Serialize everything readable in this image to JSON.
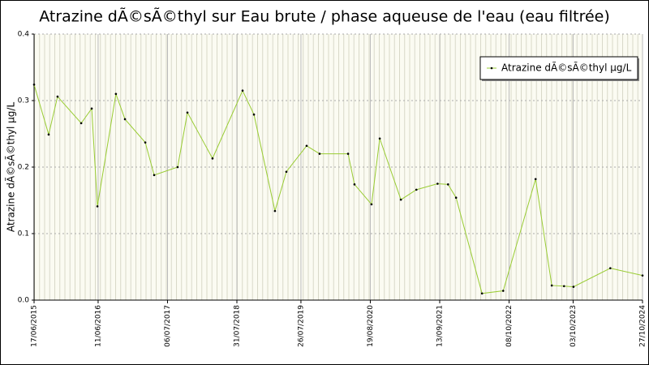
{
  "chart_data": {
    "type": "line",
    "title": "Atrazine dÃ©sÃ©thyl sur Eau brute / phase aqueuse de l'eau (eau filtrée)",
    "y_label": "Atrazine dÃ©sÃ©thyl µg/L",
    "x": [
      "17/06/2015",
      "07/09/2015",
      "27/10/2015",
      "08/03/2016",
      "06/05/2016",
      "07/06/2016",
      "19/09/2016",
      "09/11/2016",
      "03/03/2017",
      "22/04/2017",
      "01/09/2017",
      "26/10/2017",
      "16/03/2018",
      "01/09/2018",
      "04/11/2018",
      "02/03/2019",
      "05/05/2019",
      "27/08/2019",
      "08/11/2019",
      "16/04/2020",
      "22/05/2020",
      "26/08/2020",
      "11/10/2020",
      "07/02/2021",
      "05/05/2021",
      "01/09/2021",
      "30/10/2021",
      "14/12/2021",
      "09/05/2022",
      "05/09/2022",
      "06/03/2023",
      "05/06/2023",
      "13/08/2023",
      "05/10/2023",
      "29/04/2024",
      "27/10/2024"
    ],
    "series": [
      {
        "name": "Atrazine dÃ©sÃ©thyl µg/L",
        "color": "#99cc33",
        "values": [
          0.324,
          0.249,
          0.306,
          0.266,
          0.288,
          0.141,
          0.31,
          0.272,
          0.237,
          0.188,
          0.2,
          0.282,
          0.213,
          0.315,
          0.279,
          0.134,
          0.193,
          0.232,
          0.22,
          0.22,
          0.174,
          0.144,
          0.243,
          0.151,
          0.166,
          0.175,
          0.174,
          0.154,
          0.01,
          0.014,
          0.182,
          0.022,
          0.021,
          0.02,
          0.048,
          0.037
        ]
      }
    ],
    "xlim": [
      "17/06/2015",
      "27/10/2024"
    ],
    "xticks": [
      "17/06/2015",
      "11/06/2016",
      "06/07/2017",
      "31/07/2018",
      "26/07/2019",
      "19/08/2020",
      "13/09/2021",
      "08/10/2022",
      "03/10/2023",
      "27/10/2024"
    ],
    "ylim": [
      0,
      0.4
    ],
    "yticks": [
      {
        "value": 0,
        "label": "0.0"
      },
      0.1,
      0.2,
      0.3,
      0.4
    ],
    "grid": true,
    "legend": "upper right"
  }
}
